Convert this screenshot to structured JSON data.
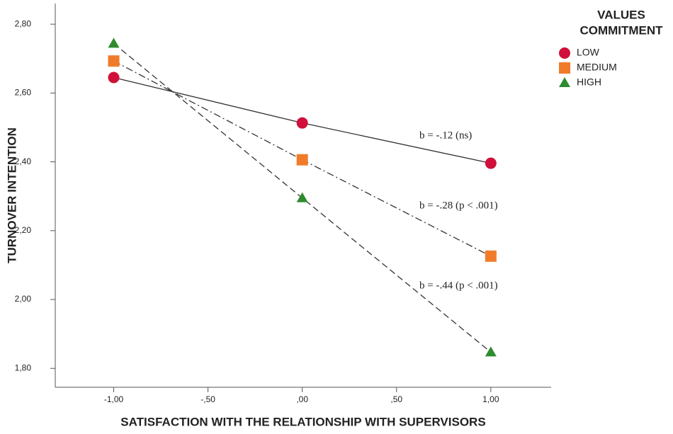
{
  "chart_data": {
    "type": "line",
    "x_label": "SATISFACTION WITH THE RELATIONSHIP WITH SUPERVISORS",
    "y_label": "TURNOVER INTENTION",
    "legend_title": [
      "VALUES",
      "COMMITMENT"
    ],
    "legend_position": "upper right",
    "x": [
      -1,
      0,
      1
    ],
    "xlim": [
      -1.31,
      1.32
    ],
    "xticks": [
      {
        "value": -1,
        "label": "-1,00"
      },
      {
        "value": -0.5,
        "label": "-,50"
      },
      {
        "value": 0,
        "label": ",00"
      },
      {
        "value": 0.5,
        "label": ",50"
      },
      {
        "value": 1,
        "label": "1,00"
      }
    ],
    "ylim": [
      1.745,
      2.86
    ],
    "yticks": [
      {
        "value": 1.8,
        "label": "1,80"
      },
      {
        "value": 2.0,
        "label": "2,00"
      },
      {
        "value": 2.2,
        "label": "2,20"
      },
      {
        "value": 2.4,
        "label": "2,40"
      },
      {
        "value": 2.6,
        "label": "2,60"
      },
      {
        "value": 2.8,
        "label": "2,80"
      }
    ],
    "grid": false,
    "series": [
      {
        "name": "LOW",
        "color": "#d0103a",
        "marker": "circle",
        "linestyle": "solid",
        "values": [
          2.645,
          2.513,
          2.396
        ]
      },
      {
        "name": "MEDIUM",
        "color": "#f07c2a",
        "marker": "square",
        "linestyle": "dashdot",
        "values": [
          2.693,
          2.406,
          2.126
        ]
      },
      {
        "name": "HIGH",
        "color": "#2e8b2e",
        "marker": "triangle",
        "linestyle": "dashed",
        "values": [
          2.744,
          2.295,
          1.847
        ]
      }
    ],
    "annotations": [
      "b = -.12 (ns)",
      "b = -.28 (p < .001)",
      "b = -.44 (p < .001)"
    ]
  }
}
